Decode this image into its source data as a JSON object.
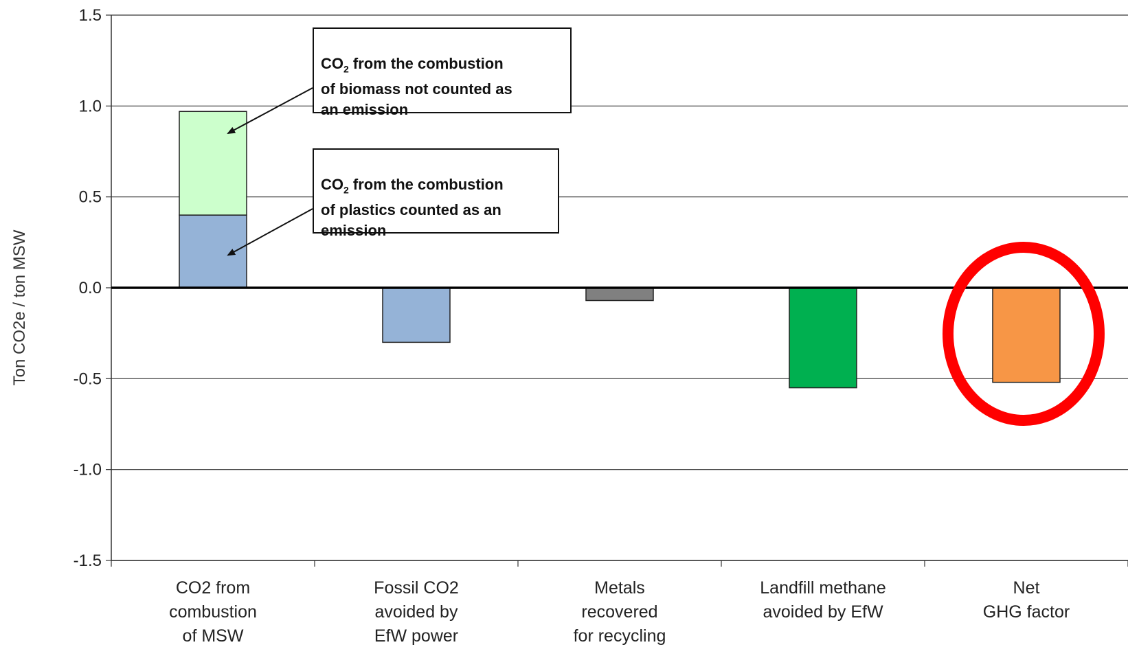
{
  "chart_data": {
    "type": "bar",
    "stacked": true,
    "title": "",
    "xlabel": "",
    "ylabel": "Ton CO2e / ton MSW",
    "ylim": [
      -1.5,
      1.5
    ],
    "yticks": [
      "1.5",
      "1.0",
      "0.5",
      "0.0",
      "-0.5",
      "-1.0",
      "-1.5"
    ],
    "grid": true,
    "categories": [
      [
        "CO2 from",
        "combustion",
        "of MSW"
      ],
      [
        "Fossil CO2",
        "avoided by",
        "EfW power"
      ],
      [
        "Metals",
        "recovered",
        "for recycling"
      ],
      [
        "Landfill methane",
        "avoided by EfW"
      ],
      [
        "Net",
        "GHG factor"
      ]
    ],
    "bars": [
      {
        "category_index": 0,
        "segments": [
          {
            "value": 0.4,
            "color": "#95b3d7"
          },
          {
            "value": 0.57,
            "color": "#ccffcc"
          }
        ]
      },
      {
        "category_index": 1,
        "segments": [
          {
            "value": -0.3,
            "color": "#95b3d7"
          }
        ]
      },
      {
        "category_index": 2,
        "segments": [
          {
            "value": -0.07,
            "color": "#808080"
          }
        ]
      },
      {
        "category_index": 3,
        "segments": [
          {
            "value": -0.55,
            "color": "#00b050"
          }
        ]
      },
      {
        "category_index": 4,
        "segments": [
          {
            "value": -0.52,
            "color": "#f79646"
          }
        ]
      }
    ],
    "annotations": [
      {
        "id": "biomass",
        "prefix": "CO",
        "sub": "2",
        "text": " from the combustion\nof biomass not counted as\nan emission",
        "points_to": {
          "category_index": 0,
          "value": 0.85
        }
      },
      {
        "id": "plastics",
        "prefix": "CO",
        "sub": "2",
        "text": " from the combustion\nof plastics counted as an\nemission",
        "points_to": {
          "category_index": 0,
          "value": 0.18
        }
      }
    ],
    "highlight": {
      "category_index": 4,
      "color": "#ff0000"
    }
  }
}
